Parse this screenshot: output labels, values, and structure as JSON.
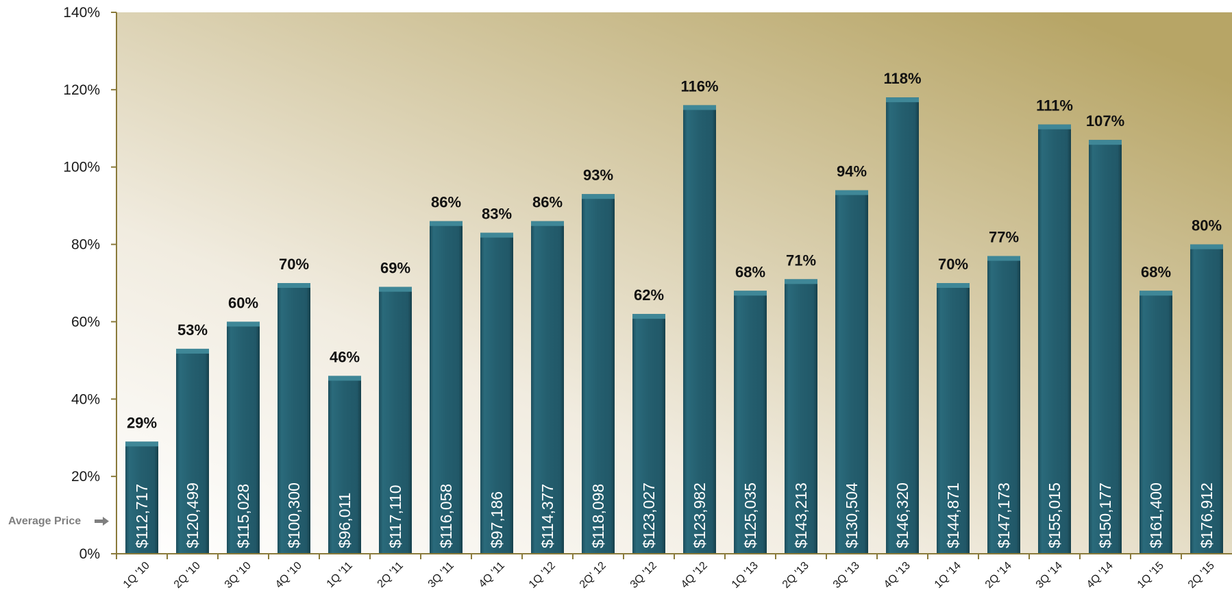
{
  "colors": {
    "bar": "#235c6c",
    "bar_cap": "#3f8797",
    "axis": "#8a7a3a",
    "background_top": "#b7a566",
    "background_bottom": "#ffffff"
  },
  "chart_data": {
    "type": "bar",
    "title": "",
    "xlabel": "",
    "ylabel": "",
    "ylim": [
      0,
      140
    ],
    "y_ticks": [
      "0%",
      "20%",
      "40%",
      "60%",
      "80%",
      "100%",
      "120%",
      "140%"
    ],
    "grid": false,
    "categories": [
      "1Q '10",
      "2Q '10",
      "3Q '10",
      "4Q '10",
      "1Q '11",
      "2Q '11",
      "3Q '11",
      "4Q '11",
      "1Q '12",
      "2Q' 12",
      "3Q '12",
      "4Q '12",
      "1Q '13",
      "2Q '13",
      "3Q '13",
      "4Q '13",
      "1Q '14",
      "2Q '14",
      "3Q '14",
      "4Q '14",
      "1Q '15",
      "2Q '15"
    ],
    "values": [
      29,
      53,
      60,
      70,
      46,
      69,
      86,
      83,
      86,
      93,
      62,
      116,
      68,
      71,
      94,
      118,
      70,
      77,
      111,
      107,
      68,
      80
    ],
    "value_labels": [
      "29%",
      "53%",
      "60%",
      "70%",
      "46%",
      "69%",
      "86%",
      "83%",
      "86%",
      "93%",
      "62%",
      "116%",
      "68%",
      "71%",
      "94%",
      "118%",
      "70%",
      "77%",
      "111%",
      "107%",
      "68%",
      "80%"
    ],
    "average_prices": [
      "$112,717",
      "$120,499",
      "$115,028",
      "$100,300",
      "$96,011",
      "$117,110",
      "$116,058",
      "$97,186",
      "$114,377",
      "$118,098",
      "$123,027",
      "$123,982",
      "$125,035",
      "$143,213",
      "$130,504",
      "$146,320",
      "$144,871",
      "$147,173",
      "$155,015",
      "$150,177",
      "$161,400",
      "$176,912"
    ],
    "annotation": {
      "text": "Average Price",
      "icon": "arrow-right-icon"
    }
  }
}
